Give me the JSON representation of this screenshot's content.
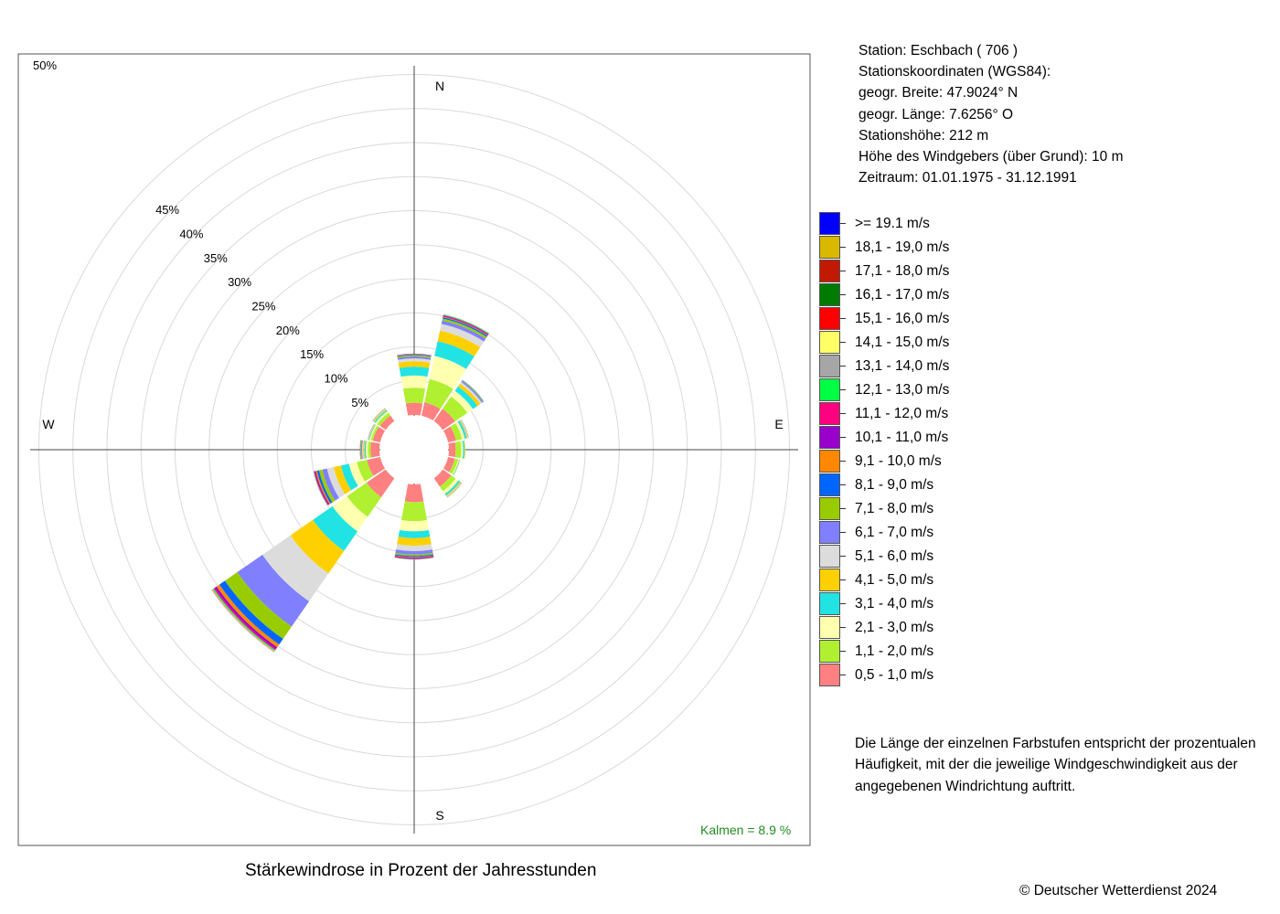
{
  "station": {
    "lines": [
      "Station:  Eschbach  ( 706 )",
      "Stationskoordinaten (WGS84):",
      "geogr. Breite: 47.9024° N",
      "geogr. Länge:   7.6256° O",
      "Stationshöhe: 212 m",
      "Höhe des Windgebers (über Grund): 10 m",
      "Zeitraum: 01.01.1975 - 31.12.1991"
    ]
  },
  "legend": {
    "items": [
      {
        "label": ">= 19.1 m/s",
        "color": "#0000ff"
      },
      {
        "label": "18,1 - 19,0 m/s",
        "color": "#d9b800"
      },
      {
        "label": "17,1 - 18,0 m/s",
        "color": "#c21a00"
      },
      {
        "label": "16,1 - 17,0 m/s",
        "color": "#007a00"
      },
      {
        "label": "15,1 - 16,0 m/s",
        "color": "#ff0000"
      },
      {
        "label": "14,1 - 15,0 m/s",
        "color": "#ffff66"
      },
      {
        "label": "13,1 - 14,0 m/s",
        "color": "#a6a6a6"
      },
      {
        "label": "12,1 - 13,0 m/s",
        "color": "#00ff44"
      },
      {
        "label": "11,1 - 12,0 m/s",
        "color": "#ff0080"
      },
      {
        "label": "10,1 - 11,0 m/s",
        "color": "#9900cc"
      },
      {
        "label": "9,1 - 10,0 m/s",
        "color": "#ff8800"
      },
      {
        "label": "8,1 - 9,0 m/s",
        "color": "#0066ff"
      },
      {
        "label": "7,1 - 8,0 m/s",
        "color": "#99cc00"
      },
      {
        "label": "6,1 - 7,0 m/s",
        "color": "#8080ff"
      },
      {
        "label": "5,1 - 6,0 m/s",
        "color": "#dcdcdc"
      },
      {
        "label": "4,1 - 5,0 m/s",
        "color": "#ffd000"
      },
      {
        "label": "3,1 - 4,0 m/s",
        "color": "#22e3e3"
      },
      {
        "label": "2,1 - 3,0 m/s",
        "color": "#ffffb0"
      },
      {
        "label": "1,1 - 2,0 m/s",
        "color": "#b0f030"
      },
      {
        "label": "0,5 - 1,0 m/s",
        "color": "#ff8080"
      }
    ]
  },
  "description": {
    "lines": [
      "Die Länge der einzelnen Farbstufen entspricht der prozentualen",
      "Häufigkeit, mit der die jeweilige Windgeschwindigkeit aus der",
      "angegebenen Windrichtung auftritt."
    ]
  },
  "caption": "Stärkewindrose in Prozent der Jahresstunden",
  "copyright": "© Deutscher Wetterdienst  2024",
  "chart_data": {
    "type": "windrose",
    "directions": [
      "N",
      "NNE",
      "NE",
      "ENE",
      "E",
      "ESE",
      "SE",
      "SSE",
      "S",
      "SSW",
      "SW",
      "WSW",
      "W",
      "WNW",
      "NW",
      "NNW"
    ],
    "compass_labels": {
      "north": "N",
      "east": "E",
      "south": "S",
      "west": "W"
    },
    "ring_labels": [
      "5%",
      "10%",
      "15%",
      "20%",
      "25%",
      "30%",
      "35%",
      "40%",
      "45%",
      "50%"
    ],
    "rings": [
      5,
      10,
      15,
      20,
      25,
      30,
      35,
      40,
      45,
      50
    ],
    "range_percent": [
      0,
      50
    ],
    "calm_label": "Kalmen  =  8.9 %",
    "calm_percent": 8.9,
    "calm_color": "#228b22",
    "bins": [
      ">= 19.1 m/s",
      "18,1 - 19,0 m/s",
      "17,1 - 18,0 m/s",
      "16,1 - 17,0 m/s",
      "15,1 - 16,0 m/s",
      "14,1 - 15,0 m/s",
      "13,1 - 14,0 m/s",
      "12,1 - 13,0 m/s",
      "11,1 - 12,0 m/s",
      "10,1 - 11,0 m/s",
      "9,1 - 10,0 m/s",
      "8,1 - 9,0 m/s",
      "7,1 - 8,0 m/s",
      "6,1 - 7,0 m/s",
      "5,1 - 6,0 m/s",
      "4,1 - 5,0 m/s",
      "3,1 - 4,0 m/s",
      "2,1 - 3,0 m/s",
      "1,1 - 2,0 m/s",
      "0,5 - 1,0 m/s"
    ],
    "frequencies_percent": {
      "N": [
        0,
        0,
        0,
        0,
        0,
        0,
        0,
        0,
        0,
        0.05,
        0.05,
        0.1,
        0.2,
        0.3,
        0.4,
        0.8,
        1.3,
        1.8,
        2.2,
        1.8
      ],
      "NNE": [
        0,
        0,
        0,
        0,
        0,
        0,
        0.05,
        0.1,
        0.1,
        0.1,
        0.1,
        0.2,
        0.3,
        0.5,
        1.0,
        1.6,
        2.2,
        3.5,
        3.5,
        2.0
      ],
      "NE": [
        0,
        0,
        0,
        0,
        0,
        0,
        0,
        0,
        0,
        0,
        0,
        0.05,
        0.1,
        0.2,
        0.3,
        0.5,
        0.8,
        1.0,
        2.2,
        2.2
      ],
      "ENE": [
        0,
        0,
        0,
        0,
        0,
        0,
        0,
        0,
        0,
        0,
        0,
        0,
        0,
        0.05,
        0.1,
        0.15,
        0.3,
        0.4,
        0.9,
        1.2
      ],
      "E": [
        0,
        0,
        0,
        0,
        0,
        0,
        0,
        0,
        0,
        0,
        0,
        0,
        0,
        0,
        0.05,
        0.1,
        0.2,
        0.3,
        0.8,
        1.0
      ],
      "ESE": [
        0,
        0,
        0,
        0,
        0,
        0,
        0,
        0,
        0,
        0,
        0,
        0,
        0,
        0,
        0,
        0.05,
        0.1,
        0.15,
        0.5,
        1.0
      ],
      "SE": [
        0,
        0,
        0,
        0,
        0,
        0,
        0,
        0,
        0,
        0,
        0,
        0,
        0.05,
        0.05,
        0.1,
        0.15,
        0.3,
        0.5,
        0.8,
        1.5
      ],
      "SSE": [
        0,
        0,
        0,
        0,
        0,
        0,
        0,
        0,
        0,
        0,
        0,
        0,
        0,
        0,
        0,
        0,
        0,
        0,
        0,
        0
      ],
      "S": [
        0,
        0,
        0,
        0,
        0,
        0,
        0.05,
        0.05,
        0.1,
        0.1,
        0.1,
        0.15,
        0.2,
        0.5,
        0.8,
        1.1,
        1.0,
        1.5,
        2.8,
        2.6
      ],
      "SSW": [
        0,
        0,
        0,
        0,
        0,
        0,
        0,
        0,
        0,
        0,
        0,
        0,
        0,
        0,
        0,
        0,
        0,
        0,
        0,
        0
      ],
      "SW": [
        0,
        0,
        0,
        0,
        0.05,
        0.05,
        0.1,
        0.15,
        0.2,
        0.3,
        0.5,
        1.0,
        2.2,
        4.5,
        5.0,
        4.0,
        3.5,
        2.6,
        3.5,
        3.4
      ],
      "WSW": [
        0,
        0,
        0,
        0,
        0,
        0,
        0.05,
        0.05,
        0.1,
        0.15,
        0.2,
        0.3,
        0.5,
        0.7,
        1.0,
        1.1,
        1.2,
        1.2,
        1.5,
        2.0
      ],
      "W": [
        0,
        0,
        0,
        0,
        0,
        0,
        0,
        0,
        0,
        0,
        0.05,
        0.05,
        0.1,
        0.15,
        0.15,
        0.2,
        0.2,
        0.3,
        0.4,
        1.3
      ],
      "WNW": [
        0,
        0,
        0,
        0,
        0,
        0,
        0,
        0,
        0,
        0,
        0,
        0,
        0,
        0.05,
        0.05,
        0.1,
        0.1,
        0.2,
        0.3,
        1.1
      ],
      "NW": [
        0,
        0,
        0,
        0,
        0,
        0,
        0,
        0,
        0,
        0,
        0,
        0,
        0.05,
        0.05,
        0.1,
        0.15,
        0.2,
        0.3,
        0.5,
        1.0
      ],
      "NNW": [
        0,
        0,
        0,
        0,
        0,
        0,
        0,
        0,
        0,
        0,
        0,
        0,
        0,
        0,
        0,
        0,
        0,
        0,
        0,
        0
      ]
    }
  }
}
